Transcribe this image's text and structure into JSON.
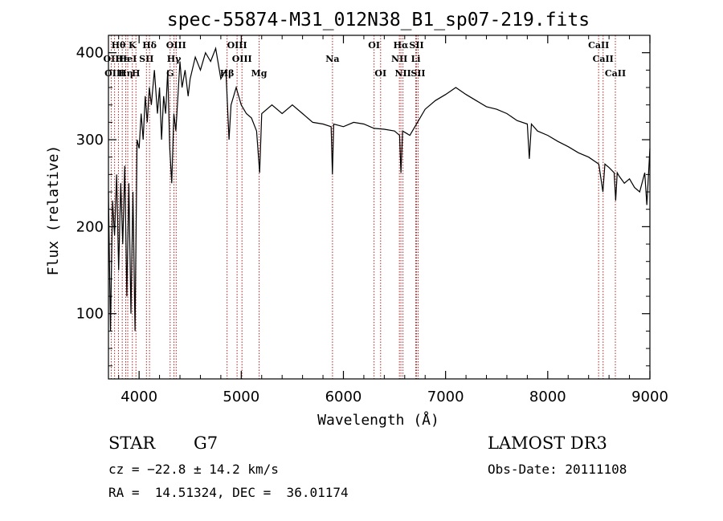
{
  "chart_data": {
    "type": "line",
    "title": "spec-55874-M31_012N38_B1_sp07-219.fits",
    "xlabel": "Wavelength (Å)",
    "ylabel": "Flux (relative)",
    "xlim": [
      3700,
      9000
    ],
    "ylim": [
      25,
      420
    ],
    "x_ticks": [
      4000,
      5000,
      6000,
      7000,
      8000,
      9000
    ],
    "y_ticks": [
      100,
      200,
      300,
      400
    ],
    "series": [
      {
        "name": "spectrum",
        "color": "#000000",
        "points": [
          [
            3700,
            240
          ],
          [
            3720,
            80
          ],
          [
            3740,
            230
          ],
          [
            3760,
            190
          ],
          [
            3780,
            260
          ],
          [
            3800,
            150
          ],
          [
            3820,
            250
          ],
          [
            3840,
            180
          ],
          [
            3860,
            270
          ],
          [
            3880,
            120
          ],
          [
            3900,
            250
          ],
          [
            3920,
            100
          ],
          [
            3940,
            240
          ],
          [
            3960,
            80
          ],
          [
            3980,
            300
          ],
          [
            4000,
            290
          ],
          [
            4020,
            330
          ],
          [
            4040,
            300
          ],
          [
            4060,
            350
          ],
          [
            4080,
            320
          ],
          [
            4100,
            360
          ],
          [
            4120,
            340
          ],
          [
            4150,
            380
          ],
          [
            4180,
            330
          ],
          [
            4200,
            360
          ],
          [
            4220,
            300
          ],
          [
            4240,
            350
          ],
          [
            4260,
            330
          ],
          [
            4280,
            380
          ],
          [
            4300,
            290
          ],
          [
            4320,
            250
          ],
          [
            4340,
            330
          ],
          [
            4360,
            310
          ],
          [
            4380,
            350
          ],
          [
            4400,
            390
          ],
          [
            4420,
            360
          ],
          [
            4450,
            380
          ],
          [
            4480,
            350
          ],
          [
            4500,
            370
          ],
          [
            4550,
            395
          ],
          [
            4600,
            380
          ],
          [
            4650,
            400
          ],
          [
            4700,
            390
          ],
          [
            4750,
            405
          ],
          [
            4800,
            370
          ],
          [
            4850,
            380
          ],
          [
            4880,
            300
          ],
          [
            4900,
            340
          ],
          [
            4950,
            360
          ],
          [
            5000,
            340
          ],
          [
            5050,
            330
          ],
          [
            5100,
            325
          ],
          [
            5150,
            310
          ],
          [
            5180,
            262
          ],
          [
            5200,
            330
          ],
          [
            5300,
            340
          ],
          [
            5400,
            330
          ],
          [
            5500,
            340
          ],
          [
            5600,
            330
          ],
          [
            5700,
            320
          ],
          [
            5800,
            318
          ],
          [
            5880,
            315
          ],
          [
            5892,
            260
          ],
          [
            5905,
            318
          ],
          [
            6000,
            315
          ],
          [
            6100,
            320
          ],
          [
            6200,
            318
          ],
          [
            6300,
            313
          ],
          [
            6400,
            312
          ],
          [
            6500,
            310
          ],
          [
            6550,
            305
          ],
          [
            6563,
            262
          ],
          [
            6580,
            310
          ],
          [
            6650,
            305
          ],
          [
            6700,
            315
          ],
          [
            6800,
            335
          ],
          [
            6900,
            345
          ],
          [
            7000,
            352
          ],
          [
            7100,
            360
          ],
          [
            7200,
            352
          ],
          [
            7300,
            345
          ],
          [
            7400,
            338
          ],
          [
            7500,
            335
          ],
          [
            7600,
            330
          ],
          [
            7700,
            322
          ],
          [
            7800,
            318
          ],
          [
            7820,
            278
          ],
          [
            7840,
            318
          ],
          [
            7900,
            310
          ],
          [
            8000,
            305
          ],
          [
            8100,
            298
          ],
          [
            8200,
            292
          ],
          [
            8300,
            285
          ],
          [
            8400,
            280
          ],
          [
            8500,
            272
          ],
          [
            8540,
            240
          ],
          [
            8560,
            272
          ],
          [
            8600,
            268
          ],
          [
            8650,
            262
          ],
          [
            8665,
            230
          ],
          [
            8680,
            262
          ],
          [
            8700,
            258
          ],
          [
            8750,
            250
          ],
          [
            8800,
            255
          ],
          [
            8850,
            245
          ],
          [
            8900,
            240
          ],
          [
            8950,
            262
          ],
          [
            8970,
            225
          ],
          [
            9000,
            290
          ]
        ]
      }
    ],
    "line_label_rows": {
      "row1": [
        {
          "text": "Hθ",
          "x": 3798
        },
        {
          "text": "K",
          "x": 3934
        },
        {
          "text": "Hδ",
          "x": 4102
        },
        {
          "text": "OIII",
          "x": 4363
        },
        {
          "text": "OIII",
          "x": 4959
        },
        {
          "text": "OI",
          "x": 6300
        },
        {
          "text": "Hα",
          "x": 6563
        },
        {
          "text": "SII",
          "x": 6716
        },
        {
          "text": "CaII",
          "x": 8498
        }
      ],
      "row2": [
        {
          "text": "OII",
          "x": 3727
        },
        {
          "text": "Hε",
          "x": 3835
        },
        {
          "text": "HeI",
          "x": 3889
        },
        {
          "text": "SII",
          "x": 4072
        },
        {
          "text": "Hγ",
          "x": 4341
        },
        {
          "text": "OIII",
          "x": 5007
        },
        {
          "text": "Na",
          "x": 5893
        },
        {
          "text": "NII",
          "x": 6548
        },
        {
          "text": "Li",
          "x": 6708
        },
        {
          "text": "CaII",
          "x": 8542
        }
      ],
      "row3": [
        {
          "text": "OIII",
          "x": 3760
        },
        {
          "text": "Hη",
          "x": 3869
        },
        {
          "text": "H",
          "x": 3969
        },
        {
          "text": "G",
          "x": 4304
        },
        {
          "text": "Hβ",
          "x": 4861
        },
        {
          "text": "Mg",
          "x": 5175
        },
        {
          "text": "OI",
          "x": 6364
        },
        {
          "text": "NII",
          "x": 6583
        },
        {
          "text": "SII",
          "x": 6731
        },
        {
          "text": "CaII",
          "x": 8662
        }
      ]
    },
    "line_marker_color": "#b22222"
  },
  "info": {
    "object_class": "STAR",
    "subclass": "G7",
    "survey": "LAMOST DR3",
    "cz": "cz = −22.8 ± 14.2 km/s",
    "obs_date": "Obs-Date: 20111108",
    "coords": "RA =  14.51324, DEC =  36.01174"
  }
}
